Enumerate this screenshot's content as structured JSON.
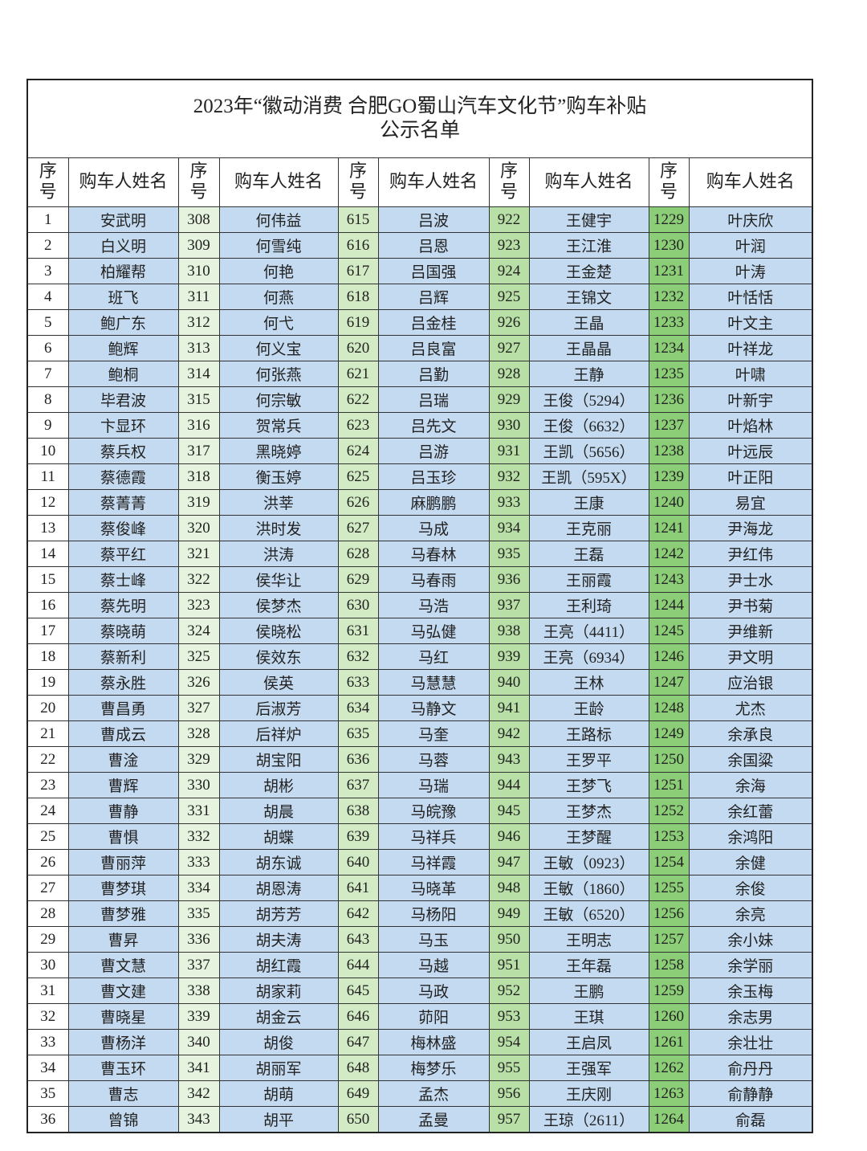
{
  "header": {
    "title_lines": [
      "2023年“徽动消费 合肥GO蜀山汽车文化节”购车补贴",
      "公示名单"
    ]
  },
  "table": {
    "columns": [
      "序号",
      "购车人姓名",
      "序号",
      "购车人姓名",
      "序号",
      "购车人姓名",
      "序号",
      "购车人姓名",
      "序号",
      "购车人姓名"
    ],
    "groups": [
      {
        "seq": [
          1,
          2,
          3,
          4,
          5,
          6,
          7,
          8,
          9,
          10,
          11,
          12,
          13,
          14,
          15,
          16,
          17,
          18,
          19,
          20,
          21,
          22,
          23,
          24,
          25,
          26,
          27,
          28,
          29,
          30,
          31,
          32,
          33,
          34,
          35,
          36
        ],
        "names": [
          "安武明",
          "白义明",
          "柏耀帮",
          "班飞",
          "鲍广东",
          "鲍辉",
          "鲍桐",
          "毕君波",
          "卞显环",
          "蔡兵权",
          "蔡德霞",
          "蔡菁菁",
          "蔡俊峰",
          "蔡平红",
          "蔡士峰",
          "蔡先明",
          "蔡晓萌",
          "蔡新利",
          "蔡永胜",
          "曹昌勇",
          "曹成云",
          "曹淦",
          "曹辉",
          "曹静",
          "曹惧",
          "曹丽萍",
          "曹梦琪",
          "曹梦雅",
          "曹昇",
          "曹文慧",
          "曹文建",
          "曹晓星",
          "曹杨洋",
          "曹玉环",
          "曹志",
          "曾锦"
        ]
      },
      {
        "seq": [
          308,
          309,
          310,
          311,
          312,
          313,
          314,
          315,
          316,
          317,
          318,
          319,
          320,
          321,
          322,
          323,
          324,
          325,
          326,
          327,
          328,
          329,
          330,
          331,
          332,
          333,
          334,
          335,
          336,
          337,
          338,
          339,
          340,
          341,
          342,
          343
        ],
        "names": [
          "何伟益",
          "何雪纯",
          "何艳",
          "何燕",
          "何弋",
          "何义宝",
          "何张燕",
          "何宗敏",
          "贺常兵",
          "黑晓婷",
          "衡玉婷",
          "洪莘",
          "洪时发",
          "洪涛",
          "侯华让",
          "侯梦杰",
          "侯晓松",
          "侯效东",
          "侯英",
          "后淑芳",
          "后祥炉",
          "胡宝阳",
          "胡彬",
          "胡晨",
          "胡蝶",
          "胡东诚",
          "胡恩涛",
          "胡芳芳",
          "胡夫涛",
          "胡红霞",
          "胡家莉",
          "胡金云",
          "胡俊",
          "胡丽军",
          "胡萌",
          "胡平"
        ]
      },
      {
        "seq": [
          615,
          616,
          617,
          618,
          619,
          620,
          621,
          622,
          623,
          624,
          625,
          626,
          627,
          628,
          629,
          630,
          631,
          632,
          633,
          634,
          635,
          636,
          637,
          638,
          639,
          640,
          641,
          642,
          643,
          644,
          645,
          646,
          647,
          648,
          649,
          650
        ],
        "names": [
          "吕波",
          "吕恩",
          "吕国强",
          "吕辉",
          "吕金桂",
          "吕良富",
          "吕勤",
          "吕瑞",
          "吕先文",
          "吕游",
          "吕玉珍",
          "麻鹏鹏",
          "马成",
          "马春林",
          "马春雨",
          "马浩",
          "马弘健",
          "马红",
          "马慧慧",
          "马静文",
          "马奎",
          "马蓉",
          "马瑞",
          "马皖豫",
          "马祥兵",
          "马祥霞",
          "马晓革",
          "马杨阳",
          "马玉",
          "马越",
          "马政",
          "茆阳",
          "梅林盛",
          "梅梦乐",
          "孟杰",
          "孟曼"
        ]
      },
      {
        "seq": [
          922,
          923,
          924,
          925,
          926,
          927,
          928,
          929,
          930,
          931,
          932,
          933,
          934,
          935,
          936,
          937,
          938,
          939,
          940,
          941,
          942,
          943,
          944,
          945,
          946,
          947,
          948,
          949,
          950,
          951,
          952,
          953,
          954,
          955,
          956,
          957
        ],
        "names": [
          "王健宇",
          "王江淮",
          "王金楚",
          "王锦文",
          "王晶",
          "王晶晶",
          "王静",
          "王俊（5294）",
          "王俊（6632）",
          "王凯（5656）",
          "王凯（595X）",
          "王康",
          "王克丽",
          "王磊",
          "王丽霞",
          "王利琦",
          "王亮（4411）",
          "王亮（6934）",
          "王林",
          "王龄",
          "王路标",
          "王罗平",
          "王梦飞",
          "王梦杰",
          "王梦醒",
          "王敏（0923）",
          "王敏（1860）",
          "王敏（6520）",
          "王明志",
          "王年磊",
          "王鹏",
          "王琪",
          "王启凤",
          "王强军",
          "王庆刚",
          "王琼（2611）"
        ]
      },
      {
        "seq": [
          1229,
          1230,
          1231,
          1232,
          1233,
          1234,
          1235,
          1236,
          1237,
          1238,
          1239,
          1240,
          1241,
          1242,
          1243,
          1244,
          1245,
          1246,
          1247,
          1248,
          1249,
          1250,
          1251,
          1252,
          1253,
          1254,
          1255,
          1256,
          1257,
          1258,
          1259,
          1260,
          1261,
          1262,
          1263,
          1264
        ],
        "names": [
          "叶庆欣",
          "叶润",
          "叶涛",
          "叶恬恬",
          "叶文主",
          "叶祥龙",
          "叶啸",
          "叶新宇",
          "叶焰林",
          "叶远辰",
          "叶正阳",
          "易宜",
          "尹海龙",
          "尹红伟",
          "尹士水",
          "尹书菊",
          "尹维新",
          "尹文明",
          "应治银",
          "尤杰",
          "余承良",
          "余国粱",
          "余海",
          "余红蕾",
          "余鸿阳",
          "余健",
          "余俊",
          "余亮",
          "余小妹",
          "余学丽",
          "余玉梅",
          "余志男",
          "余壮壮",
          "俞丹丹",
          "俞静静",
          "俞磊"
        ]
      }
    ]
  }
}
